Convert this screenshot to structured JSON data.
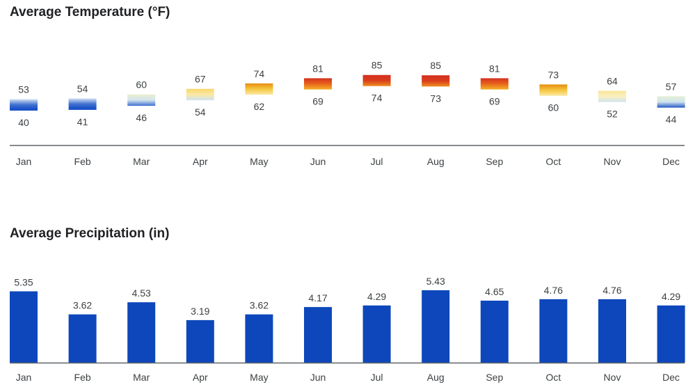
{
  "temperature": {
    "title": "Average Temperature (°F)",
    "chart_data": {
      "type": "bar",
      "title": "Average Temperature (°F)",
      "categories": [
        "Jan",
        "Feb",
        "Mar",
        "Apr",
        "May",
        "Jun",
        "Jul",
        "Aug",
        "Sep",
        "Oct",
        "Nov",
        "Dec"
      ],
      "series": [
        {
          "name": "",
          "values": [
            53,
            54,
            60,
            67,
            74,
            81,
            85,
            85,
            81,
            73,
            64,
            57
          ]
        },
        {
          "name": "",
          "values": [
            40,
            41,
            46,
            54,
            62,
            69,
            74,
            73,
            69,
            60,
            52,
            44
          ]
        }
      ],
      "ylim": [
        40,
        85
      ],
      "colors": {
        "cold": "#0d47c4",
        "cool": "#cfe3f0",
        "mild": "#fbe9a6",
        "warm": "#f2a01a",
        "hot": "#d32f1f"
      },
      "grid": false
    }
  },
  "precipitation": {
    "title": "Average Precipitation (in)",
    "chart_data": {
      "type": "bar",
      "title": "Average Precipitation (in)",
      "categories": [
        "Jan",
        "Feb",
        "Mar",
        "Apr",
        "May",
        "Jun",
        "Jul",
        "Aug",
        "Sep",
        "Oct",
        "Nov",
        "Dec"
      ],
      "values": [
        5.35,
        3.62,
        4.53,
        3.19,
        3.62,
        4.17,
        4.29,
        5.43,
        4.65,
        4.76,
        4.76,
        4.29
      ],
      "labels": [
        "5.35",
        "3.62",
        "4.53",
        "3.19",
        "3.62",
        "4.17",
        "4.29",
        "5.43",
        "4.65",
        "4.76",
        "4.76",
        "4.29"
      ],
      "ylim": [
        0,
        5.43
      ],
      "bar_color": "#0d47bb",
      "grid": false
    }
  }
}
